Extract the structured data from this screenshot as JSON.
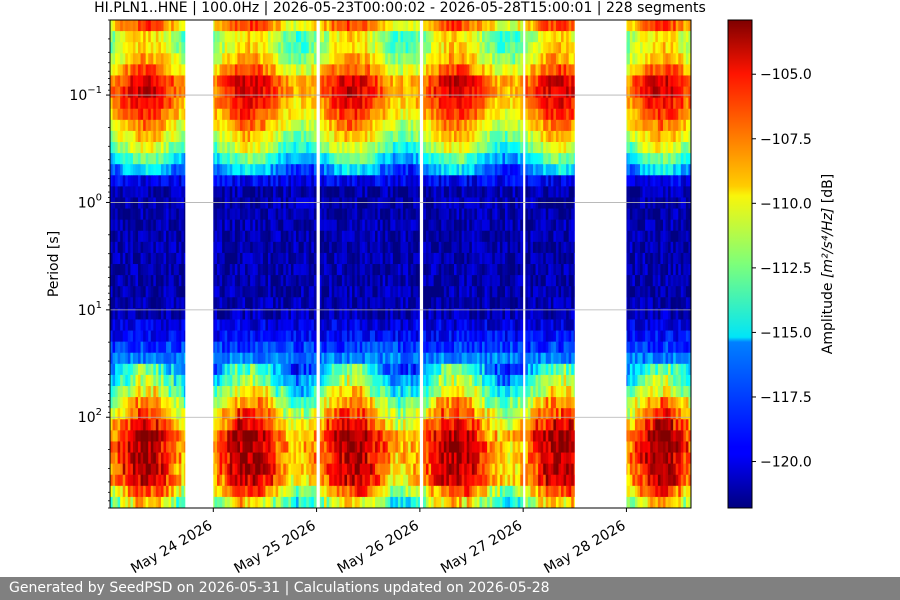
{
  "chart_data": {
    "type": "heatmap",
    "title": "HI.PLN1..HNE | 100.0Hz | 2026-05-23T00:00:02 - 2026-05-28T15:00:01 | 228 segments",
    "ylabel": "Period [s]",
    "y_scale": "log",
    "y_inverted": true,
    "ylim": [
      0.02,
      700
    ],
    "y_ticks": [
      {
        "value": 0.1,
        "base": "10",
        "exp": "−1"
      },
      {
        "value": 1,
        "base": "10",
        "exp": "0"
      },
      {
        "value": 10,
        "base": "10",
        "exp": "1"
      },
      {
        "value": 100,
        "base": "10",
        "exp": "2"
      }
    ],
    "grid": "horizontal",
    "xlim": [
      "2026-05-23T00:00:02",
      "2026-05-28T15:00:01"
    ],
    "x_ticks": [
      "May 24 2026",
      "May 25 2026",
      "May 26 2026",
      "May 27 2026",
      "May 28 2026"
    ],
    "data_gaps": [
      {
        "start": "2026-05-23T17:30",
        "end": "2026-05-24T00:00"
      },
      {
        "start": "2026-05-25T00:00",
        "end": "2026-05-25T00:45"
      },
      {
        "start": "2026-05-26T00:00",
        "end": "2026-05-26T00:45"
      },
      {
        "start": "2026-05-27T00:00",
        "end": "2026-05-27T00:30"
      },
      {
        "start": "2026-05-27T12:00",
        "end": "2026-05-28T00:00"
      }
    ],
    "colorbar": {
      "label_plain": "Amplitude ",
      "label_math": "[m²/s⁴/Hz]",
      "label_unit": " [dB]",
      "colormap": "jet",
      "vmin": -121.8,
      "vmax": -102.9,
      "ticks": [
        "−105.0",
        "−107.5",
        "−110.0",
        "−112.5",
        "−115.0",
        "−117.5",
        "−120.0"
      ],
      "tick_values": [
        -105,
        -107.5,
        -110,
        -112.5,
        -115,
        -117.5,
        -120
      ]
    },
    "period_profile": [
      {
        "period": 0.02,
        "db": -107
      },
      {
        "period": 0.03,
        "db": -112
      },
      {
        "period": 0.05,
        "db": -110
      },
      {
        "period": 0.08,
        "db": -106
      },
      {
        "period": 0.15,
        "db": -108
      },
      {
        "period": 0.3,
        "db": -112
      },
      {
        "period": 0.5,
        "db": -117
      },
      {
        "period": 0.7,
        "db": -121
      },
      {
        "period": 3,
        "db": -121
      },
      {
        "period": 10,
        "db": -121
      },
      {
        "period": 20,
        "db": -119
      },
      {
        "period": 40,
        "db": -115
      },
      {
        "period": 80,
        "db": -110
      },
      {
        "period": 150,
        "db": -106
      },
      {
        "period": 400,
        "db": -107
      },
      {
        "period": 700,
        "db": -113
      }
    ]
  },
  "footer": {
    "text": "Generated by SeedPSD on 2026-05-31 | Calculations updated on 2026-05-28"
  }
}
